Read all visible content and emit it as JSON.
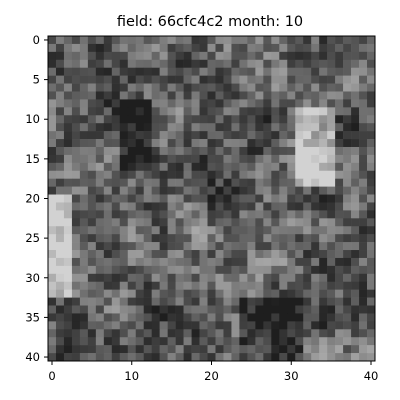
{
  "chart_data": {
    "type": "heatmap",
    "title": "field: 66cfc4c2  month: 10",
    "xlabel": "",
    "ylabel": "",
    "colormap": "gray",
    "grid": false,
    "shape": [
      41,
      41
    ],
    "x_ticks": [
      0,
      10,
      20,
      30,
      40
    ],
    "y_ticks": [
      0,
      5,
      10,
      15,
      20,
      25,
      30,
      35,
      40
    ],
    "xlim": [
      -0.5,
      40.5
    ],
    "ylim": [
      40.5,
      -0.5
    ],
    "seed": 1783
  }
}
